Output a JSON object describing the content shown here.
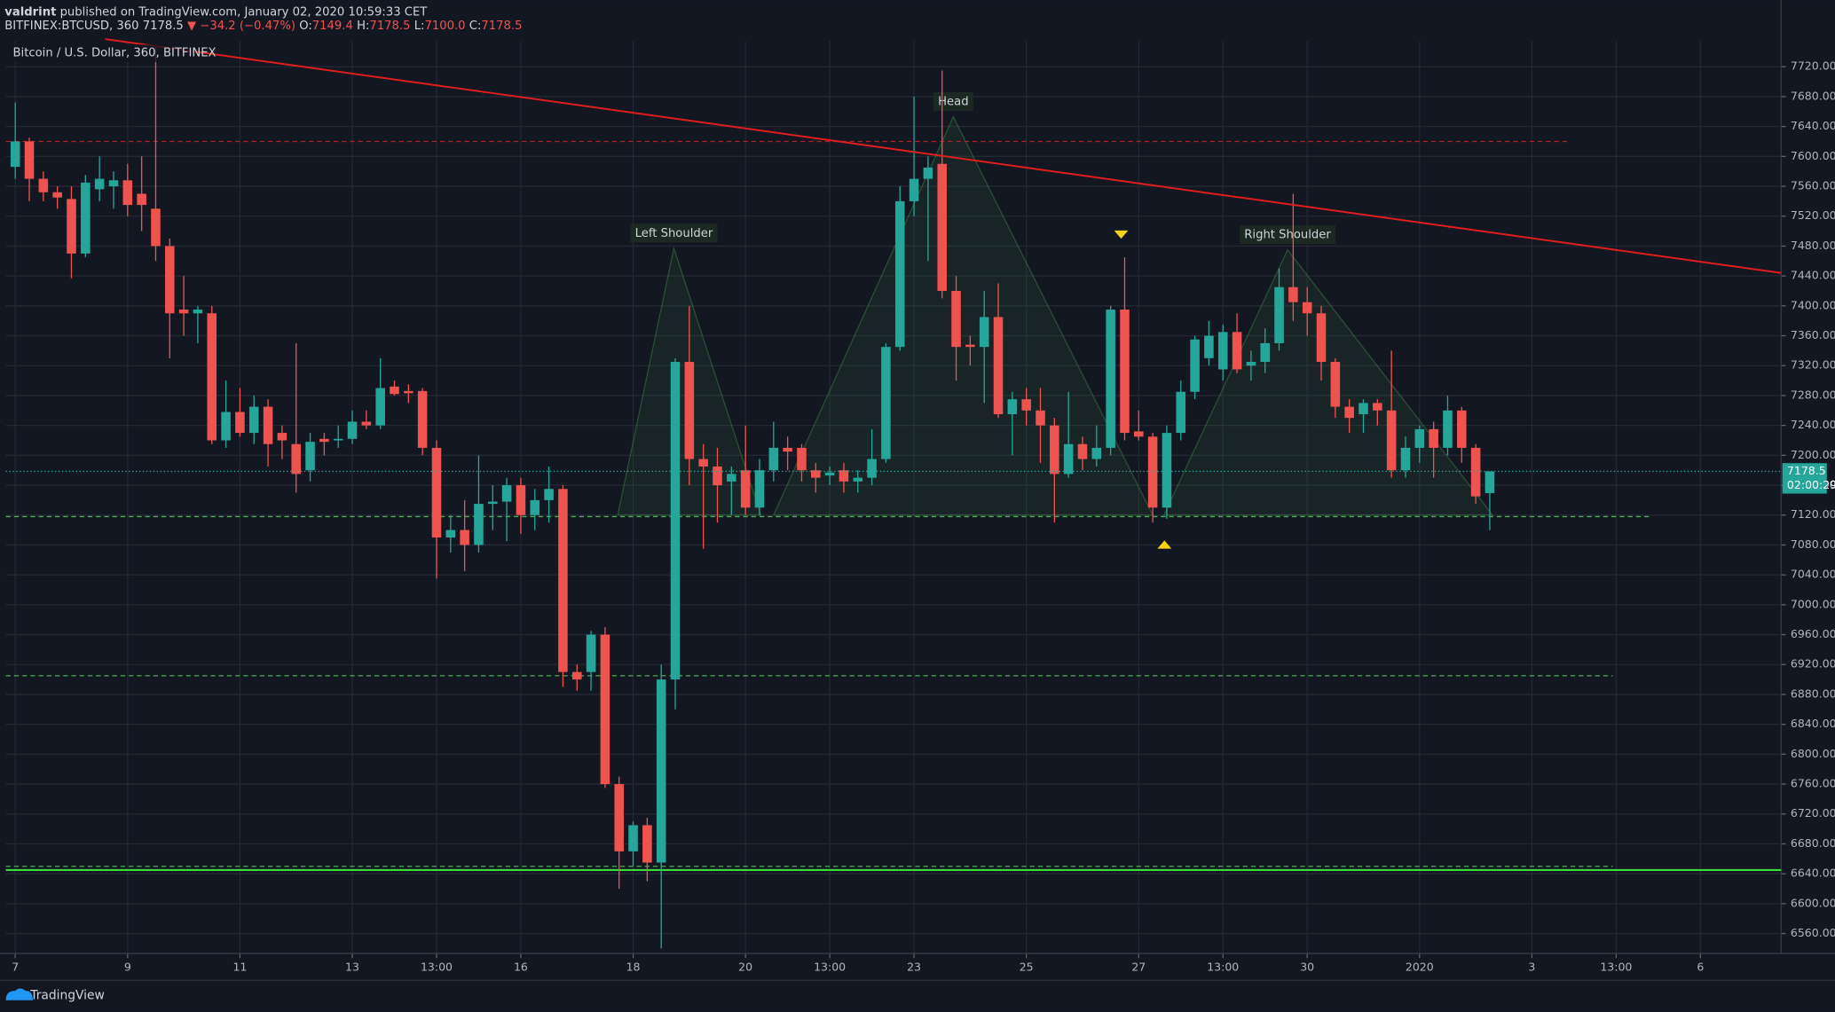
{
  "header": {
    "author": "valdrint",
    "published": "published on TradingView.com, January 02, 2020 10:59:33 CET",
    "symbol": "BITFINEX:BTCUSD, 360",
    "last": "7178.5",
    "arrow": "▼",
    "change": "−34.2 (−0.47%)",
    "ohlc": [
      {
        "label": "O:",
        "value": "7149.4"
      },
      {
        "label": "H:",
        "value": "7178.5"
      },
      {
        "label": "L:",
        "value": "7100.0"
      },
      {
        "label": "C:",
        "value": "7178.5"
      }
    ]
  },
  "chart_data": {
    "type": "candlestick",
    "title": "Bitcoin / U.S. Dollar, 360, BITFINEX",
    "up_color": "#26a69a",
    "down_color": "#ef5350",
    "grid": true,
    "open": [
      7586,
      7620,
      7570,
      7552,
      7543,
      7470,
      7556,
      7560,
      7568,
      7550,
      7530,
      7480,
      7395,
      7390,
      7390,
      7220,
      7258,
      7230,
      7265,
      7230,
      7215,
      7180,
      7222,
      7220,
      7222,
      7245,
      7240,
      7292,
      7286,
      7286,
      7210,
      7090,
      7100,
      7080,
      7135,
      7138,
      7160,
      7120,
      7140,
      7155,
      6910,
      6910,
      6960,
      6760,
      6670,
      6705,
      6655,
      6900,
      7325,
      7195,
      7185,
      7165,
      7180,
      7130,
      7180,
      7210,
      7210,
      7180,
      7173,
      7180,
      7165,
      7170,
      7195,
      7345,
      7540,
      7570,
      7590,
      7420,
      7348,
      7345,
      7385,
      7255,
      7275,
      7260,
      7240,
      7175,
      7215,
      7195,
      7210,
      7395,
      7232,
      7225,
      7130,
      7230,
      7285,
      7330,
      7315,
      7365,
      7320,
      7325,
      7350,
      7425,
      7405,
      7390,
      7325,
      7265,
      7255,
      7270,
      7260,
      7180,
      7210,
      7235,
      7210,
      7260,
      7210,
      7149.4
    ],
    "high": [
      7672,
      7625,
      7580,
      7560,
      7560,
      7575,
      7600,
      7580,
      7590,
      7600,
      7747,
      7490,
      7440,
      7400,
      7400,
      7300,
      7290,
      7280,
      7275,
      7240,
      7350,
      7230,
      7230,
      7240,
      7260,
      7260,
      7330,
      7300,
      7295,
      7290,
      7220,
      7120,
      7140,
      7200,
      7160,
      7170,
      7170,
      7155,
      7185,
      7160,
      6920,
      6965,
      6970,
      6770,
      6710,
      6715,
      6920,
      7330,
      7400,
      7215,
      7210,
      7185,
      7240,
      7195,
      7245,
      7225,
      7215,
      7190,
      7185,
      7190,
      7180,
      7235,
      7350,
      7560,
      7680,
      7600,
      7715,
      7440,
      7360,
      7420,
      7430,
      7285,
      7290,
      7290,
      7250,
      7285,
      7225,
      7240,
      7400,
      7465,
      7260,
      7230,
      7240,
      7300,
      7360,
      7380,
      7375,
      7390,
      7340,
      7370,
      7450,
      7550,
      7425,
      7400,
      7330,
      7275,
      7275,
      7275,
      7340,
      7225,
      7240,
      7245,
      7280,
      7265,
      7215,
      7178.5
    ],
    "low": [
      7570,
      7540,
      7540,
      7530,
      7437,
      7465,
      7540,
      7530,
      7520,
      7500,
      7460,
      7330,
      7360,
      7350,
      7215,
      7210,
      7225,
      7215,
      7185,
      7195,
      7150,
      7165,
      7200,
      7210,
      7215,
      7235,
      7235,
      7280,
      7270,
      7200,
      7035,
      7070,
      7045,
      7070,
      7100,
      7085,
      7095,
      7100,
      7110,
      6890,
      6885,
      6885,
      6755,
      6620,
      6650,
      6630,
      6540,
      6860,
      7160,
      7075,
      7110,
      7120,
      7120,
      7120,
      7165,
      7180,
      7165,
      7150,
      7160,
      7150,
      7150,
      7160,
      7190,
      7340,
      7520,
      7460,
      7410,
      7300,
      7320,
      7270,
      7250,
      7200,
      7240,
      7190,
      7110,
      7170,
      7180,
      7185,
      7200,
      7220,
      7220,
      7110,
      7115,
      7220,
      7275,
      7320,
      7300,
      7310,
      7300,
      7310,
      7340,
      7380,
      7360,
      7300,
      7250,
      7230,
      7230,
      7240,
      7170,
      7170,
      7190,
      7170,
      7200,
      7190,
      7135,
      7100
    ],
    "close": [
      7620,
      7570,
      7552,
      7545,
      7470,
      7565,
      7570,
      7568,
      7535,
      7535,
      7480,
      7390,
      7390,
      7395,
      7220,
      7258,
      7230,
      7265,
      7215,
      7220,
      7175,
      7218,
      7218,
      7222,
      7245,
      7240,
      7290,
      7282,
      7283,
      7210,
      7090,
      7100,
      7080,
      7135,
      7138,
      7160,
      7120,
      7140,
      7155,
      6910,
      6900,
      6960,
      6760,
      6670,
      6705,
      6655,
      6900,
      7325,
      7195,
      7185,
      7160,
      7175,
      7130,
      7180,
      7210,
      7205,
      7180,
      7170,
      7177,
      7165,
      7170,
      7195,
      7345,
      7540,
      7570,
      7585,
      7420,
      7345,
      7345,
      7385,
      7255,
      7275,
      7260,
      7240,
      7175,
      7215,
      7195,
      7210,
      7395,
      7230,
      7225,
      7130,
      7230,
      7285,
      7355,
      7360,
      7365,
      7315,
      7325,
      7350,
      7425,
      7405,
      7390,
      7325,
      7265,
      7250,
      7270,
      7260,
      7180,
      7210,
      7235,
      7210,
      7260,
      7210,
      7145,
      7178.5
    ],
    "xlim": [
      -0.67,
      125.75
    ],
    "xticks": [
      {
        "value": 0,
        "label": "7"
      },
      {
        "value": 8,
        "label": "9"
      },
      {
        "value": 16,
        "label": "11"
      },
      {
        "value": 24,
        "label": "13"
      },
      {
        "value": 30,
        "label": "13:00"
      },
      {
        "value": 36,
        "label": "16"
      },
      {
        "value": 44,
        "label": "18"
      },
      {
        "value": 52,
        "label": "20"
      },
      {
        "value": 58,
        "label": "13:00"
      },
      {
        "value": 64,
        "label": "23"
      },
      {
        "value": 72,
        "label": "25"
      },
      {
        "value": 80,
        "label": "27"
      },
      {
        "value": 86,
        "label": "13:00"
      },
      {
        "value": 92,
        "label": "30"
      },
      {
        "value": 100,
        "label": "2020"
      },
      {
        "value": 108,
        "label": "3"
      },
      {
        "value": 114,
        "label": "13:00"
      },
      {
        "value": 120,
        "label": "6"
      }
    ],
    "ylim": [
      6533.4,
      7754.4
    ],
    "yticks": [
      {
        "value": 6560,
        "label": "6560.00"
      },
      {
        "value": 6600,
        "label": "6600.00"
      },
      {
        "value": 6640,
        "label": "6640.00"
      },
      {
        "value": 6680,
        "label": "6680.00"
      },
      {
        "value": 6720,
        "label": "6720.00"
      },
      {
        "value": 6760,
        "label": "6760.00"
      },
      {
        "value": 6800,
        "label": "6800.00"
      },
      {
        "value": 6840,
        "label": "6840.00"
      },
      {
        "value": 6880,
        "label": "6880.00"
      },
      {
        "value": 6920,
        "label": "6920.00"
      },
      {
        "value": 6960,
        "label": "6960.00"
      },
      {
        "value": 7000,
        "label": "7000.00"
      },
      {
        "value": 7040,
        "label": "7040.00"
      },
      {
        "value": 7080,
        "label": "7080.00"
      },
      {
        "value": 7120,
        "label": "7120.00"
      },
      {
        "value": 7160,
        "label": "7160.00"
      },
      {
        "value": 7200,
        "label": "7200.00"
      },
      {
        "value": 7240,
        "label": "7240.00"
      },
      {
        "value": 7280,
        "label": "7280.00"
      },
      {
        "value": 7320,
        "label": "7320.00"
      },
      {
        "value": 7360,
        "label": "7360.00"
      },
      {
        "value": 7400,
        "label": "7400.00"
      },
      {
        "value": 7440,
        "label": "7440.00"
      },
      {
        "value": 7480,
        "label": "7480.00"
      },
      {
        "value": 7520,
        "label": "7520.00"
      },
      {
        "value": 7560,
        "label": "7560.00"
      },
      {
        "value": 7600,
        "label": "7600.00"
      },
      {
        "value": 7640,
        "label": "7640.00"
      },
      {
        "value": 7680,
        "label": "7680.00"
      },
      {
        "value": 7720,
        "label": "7720.00"
      }
    ],
    "last_price_label": "7178.5",
    "timer": "02:00:29",
    "trendline": {
      "color": "#e01e1e",
      "points": [
        [
          6.4,
          7757
        ],
        [
          125.75,
          7444
        ]
      ]
    },
    "levels": [
      {
        "value": 7620,
        "color": "#b22222",
        "dash": "4,3",
        "end": 110.6
      },
      {
        "value": 7118,
        "color": "#4caf50",
        "dash": "4,3",
        "end": 116.4
      },
      {
        "value": 6905,
        "color": "#4caf50",
        "dash": "4,3",
        "end": 113.75
      },
      {
        "value": 6650,
        "color": "#4caf50",
        "dash": "4,3",
        "end": 113.75
      },
      {
        "value": 6645,
        "color": "#3ddc3d",
        "dash": "none"
      }
    ],
    "patterns": [
      {
        "label": "Left Shoulder",
        "points": [
          [
            42.9,
            7120
          ],
          [
            46.9,
            7477
          ],
          [
            53.1,
            7120
          ]
        ]
      },
      {
        "label": "Head",
        "points": [
          [
            54,
            7120
          ],
          [
            66.8,
            7653
          ],
          [
            81,
            7120
          ]
        ]
      },
      {
        "label": "Right Shoulder",
        "points": [
          [
            81.8,
            7120
          ],
          [
            90.6,
            7475
          ],
          [
            105.2,
            7120
          ]
        ]
      }
    ]
  },
  "footer": {
    "brand": "TradingView"
  }
}
